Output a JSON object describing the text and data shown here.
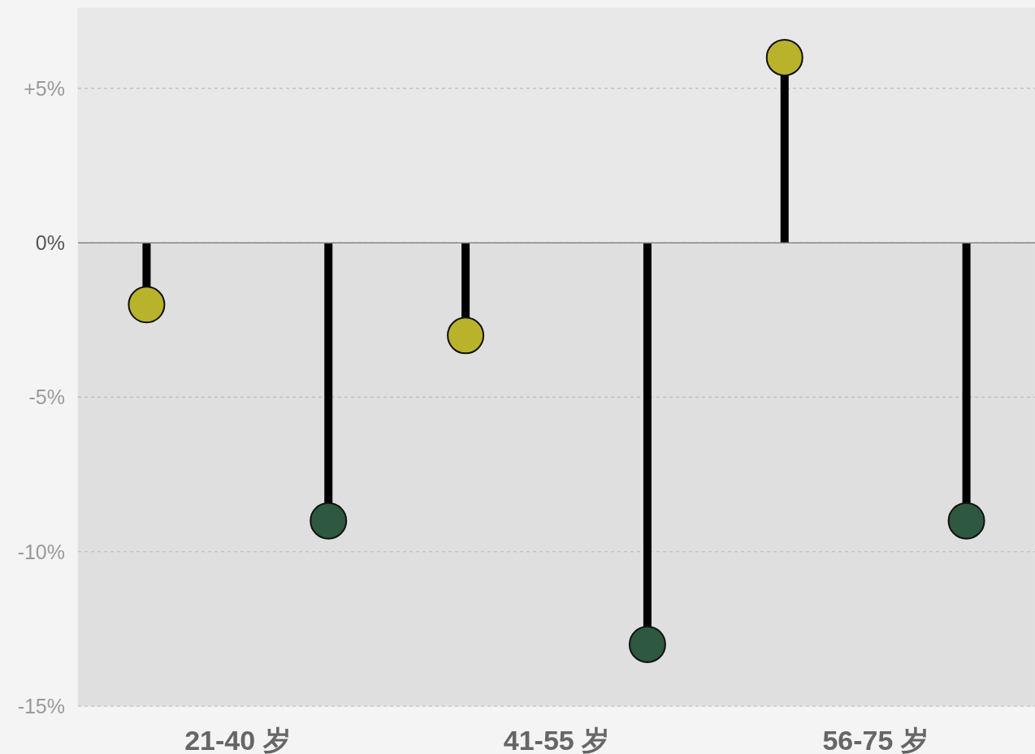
{
  "chart_data": {
    "type": "lollipop",
    "categories": [
      "21-40 岁",
      "41-55 岁",
      "56-75 岁"
    ],
    "series": [
      {
        "color": "#b9b32b",
        "values": [
          -2,
          -3,
          6
        ]
      },
      {
        "color": "#2e5840",
        "values": [
          -9,
          -13,
          -9
        ]
      }
    ],
    "ylim": [
      -15,
      7.6
    ],
    "yticks": [
      {
        "value": 5,
        "label": "+5%"
      },
      {
        "value": 0,
        "label": "0%"
      },
      {
        "value": -5,
        "label": "-5%"
      },
      {
        "value": -10,
        "label": "-10%"
      },
      {
        "value": -15,
        "label": "-15%"
      }
    ],
    "bands": [
      {
        "axis": "y",
        "from": -15,
        "to": 0,
        "color": "#dfdfdf"
      },
      {
        "axis": "y",
        "from": 0,
        "to": 7.6,
        "color": "#e8e8e8"
      }
    ],
    "ref_lines": [
      {
        "axis": "y",
        "value": 0,
        "color": "#888888"
      }
    ],
    "grid": "y",
    "marker": "circle"
  }
}
